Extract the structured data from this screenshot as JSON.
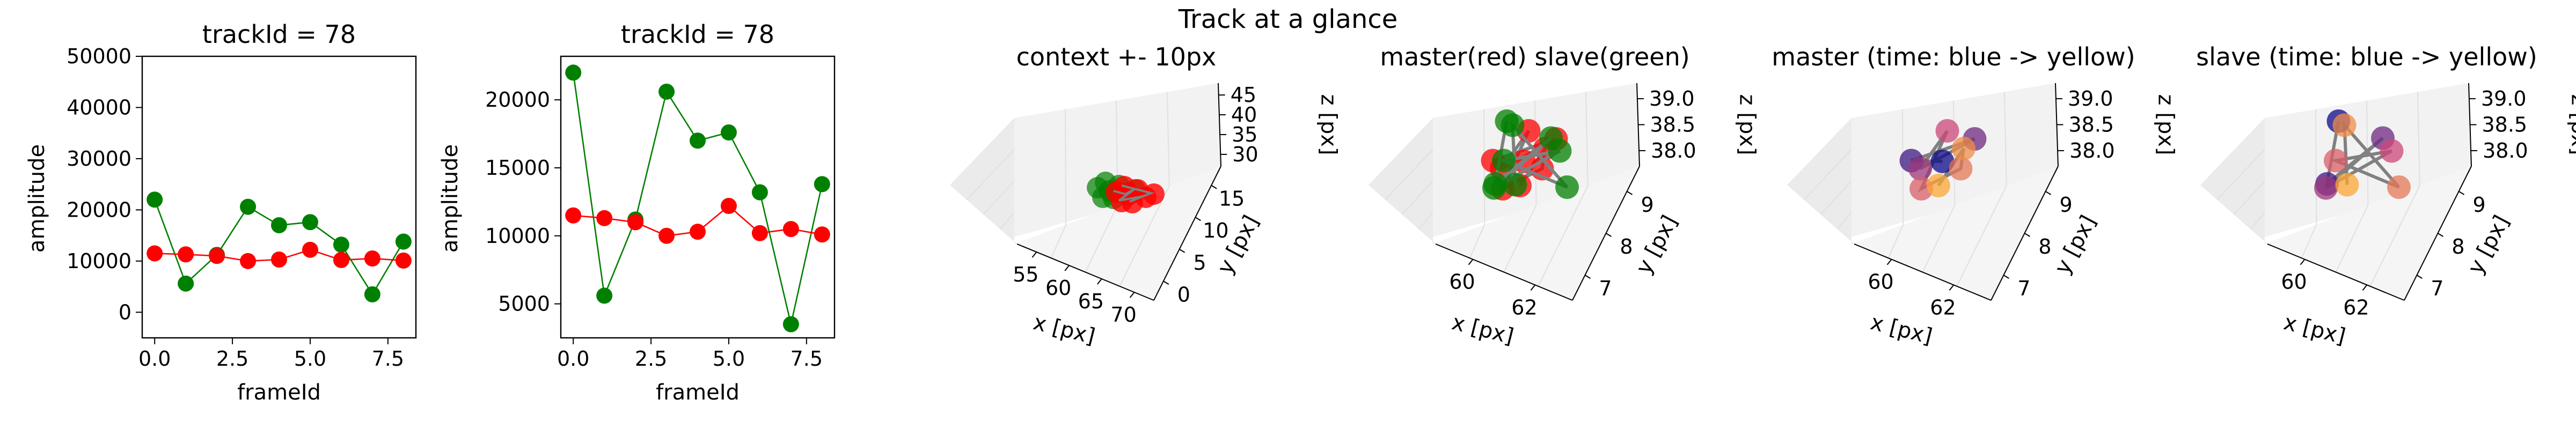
{
  "figure": {
    "suptitle": "Track at a glance"
  },
  "colors": {
    "red": "#ff0000",
    "green": "#008000",
    "grid": "#e6e6e6",
    "path": "#808080"
  },
  "chart_data": [
    {
      "type": "line",
      "title": "trackId = 78",
      "xlabel": "frameId",
      "ylabel": "amplitude",
      "xlim": [
        -0.4,
        8.4
      ],
      "ylim": [
        -5000,
        50000
      ],
      "xticks": [
        "0.0",
        "2.5",
        "5.0",
        "7.5"
      ],
      "xtick_values": [
        0,
        2.5,
        5,
        7.5
      ],
      "yticks": [
        "0",
        "10000",
        "20000",
        "30000",
        "40000",
        "50000"
      ],
      "ytick_values": [
        0,
        10000,
        20000,
        30000,
        40000,
        50000
      ],
      "x": [
        0,
        1,
        2,
        3,
        4,
        5,
        6,
        7,
        8
      ],
      "series": [
        {
          "color": "#008000",
          "values": [
            22000,
            5600,
            11200,
            20600,
            17000,
            17600,
            13200,
            3500,
            13800
          ]
        },
        {
          "color": "#ff0000",
          "values": [
            11500,
            11300,
            11000,
            10000,
            10300,
            12200,
            10200,
            10500,
            10100
          ]
        }
      ]
    },
    {
      "type": "line",
      "title": "trackId = 78",
      "xlabel": "frameId",
      "ylabel": "amplitude",
      "xlim": [
        -0.4,
        8.4
      ],
      "ylim": [
        2500,
        23200
      ],
      "xticks": [
        "0.0",
        "2.5",
        "5.0",
        "7.5"
      ],
      "xtick_values": [
        0,
        2.5,
        5,
        7.5
      ],
      "yticks": [
        "5000",
        "10000",
        "15000",
        "20000"
      ],
      "ytick_values": [
        5000,
        10000,
        15000,
        20000
      ],
      "x": [
        0,
        1,
        2,
        3,
        4,
        5,
        6,
        7,
        8
      ],
      "series": [
        {
          "color": "#008000",
          "values": [
            22000,
            5600,
            11200,
            20600,
            17000,
            17600,
            13200,
            3500,
            13800
          ]
        },
        {
          "color": "#ff0000",
          "values": [
            11500,
            11300,
            11000,
            10000,
            10300,
            12200,
            10200,
            10500,
            10100
          ]
        }
      ]
    },
    {
      "type": "scatter",
      "title": "context +- 10px",
      "xlabel": "x [px]",
      "ylabel": "y [px]",
      "zlabel": "z [px]",
      "xticks": [
        "55",
        "60",
        "65",
        "70"
      ],
      "yticks": [
        "0",
        "5",
        "10",
        "15"
      ],
      "zticks": [
        "30",
        "35",
        "40",
        "45"
      ]
    },
    {
      "type": "scatter",
      "title": "master(red) slave(green)",
      "xlabel": "x [px]",
      "ylabel": "y [px]",
      "zlabel": "z [px]",
      "xticks": [
        "60",
        "62"
      ],
      "yticks": [
        "7",
        "8",
        "9"
      ],
      "zticks": [
        "38.0",
        "38.5",
        "39.0"
      ]
    },
    {
      "type": "scatter",
      "title": "master (time: blue -> yellow)",
      "xlabel": "x [px]",
      "ylabel": "y [px]",
      "zlabel": "z [px]",
      "xticks": [
        "60",
        "62"
      ],
      "yticks": [
        "7",
        "8",
        "9"
      ],
      "zticks": [
        "38.0",
        "38.5",
        "39.0"
      ]
    },
    {
      "type": "scatter",
      "title": "slave (time: blue -> yellow)",
      "xlabel": "x [px]",
      "ylabel": "y [px]",
      "zlabel": "z [px]",
      "xticks": [
        "60",
        "62"
      ],
      "yticks": [
        "7",
        "8",
        "9"
      ],
      "zticks": [
        "38.0",
        "38.5",
        "39.0"
      ]
    }
  ]
}
